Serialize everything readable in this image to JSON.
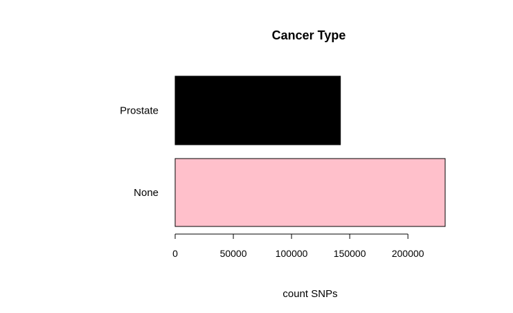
{
  "chart_data": {
    "type": "bar",
    "orientation": "horizontal",
    "title": "Cancer Type",
    "xlabel": "count SNPs",
    "ylabel": "",
    "categories": [
      "Prostate",
      "None"
    ],
    "values": [
      142000,
      232000
    ],
    "colors": [
      "#000000",
      "#ffc0cb"
    ],
    "bar_border": "#000000",
    "xlim": [
      0,
      232000
    ],
    "xticks": [
      0,
      50000,
      100000,
      150000,
      200000
    ],
    "xtick_labels": [
      "0",
      "50000",
      "100000",
      "150000",
      "200000"
    ],
    "grid": false,
    "legend": "none"
  }
}
